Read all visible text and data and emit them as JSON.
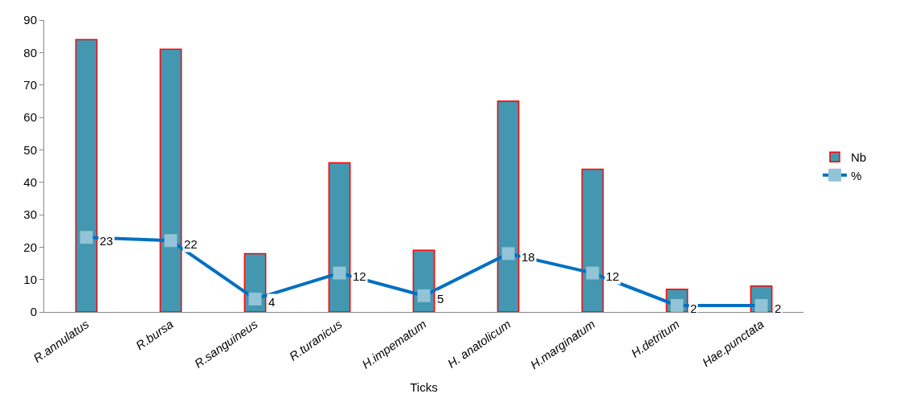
{
  "chart_data": {
    "type": "bar",
    "xlabel": "Ticks",
    "categories": [
      "R.annulatus",
      "R.bursa",
      "R.sanguineus",
      "R.turanicus",
      "H.impematum",
      "H. anatolicum",
      "H.marginatum",
      "H.detritum",
      "Hae.punctata"
    ],
    "series": [
      {
        "name": "Nb",
        "color": "#4397b0",
        "values": [
          84,
          81,
          18,
          46,
          19,
          65,
          44,
          7,
          8
        ]
      },
      {
        "name": "%",
        "type": "line",
        "color": "#0070c0",
        "marker": "square",
        "line_style": "solid",
        "colors": [
          "#93c3d6",
          "#93c3d6",
          "#93c3d6",
          "#93c3d6",
          "#93c3d6",
          "#93c3d6",
          "#93c3d6",
          "#93c3d6",
          "#93c3d6"
        ],
        "values": [
          23,
          22,
          4,
          12,
          5,
          18,
          12,
          2,
          2
        ],
        "value_labels": [
          "23",
          "22",
          "4",
          "12",
          "5",
          "18",
          "12",
          "2",
          "2"
        ]
      }
    ],
    "ylim": [
      0,
      90
    ],
    "yticks": [
      0,
      10,
      20,
      30,
      40,
      50,
      60,
      70,
      80,
      90
    ],
    "grid": false,
    "legend": "right"
  }
}
